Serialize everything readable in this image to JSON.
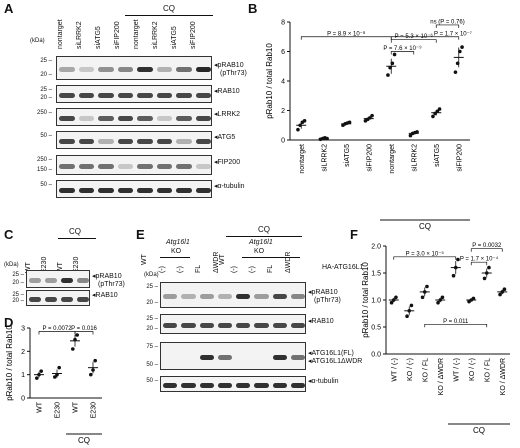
{
  "panels": {
    "A": {
      "label": "A",
      "cq": "CQ",
      "kda": "(kDa)",
      "lanes": [
        "nontarget",
        "siLRRK2",
        "siATG5",
        "siFIP200",
        "nontarget",
        "siLRRK2",
        "siATG5",
        "siFIP200"
      ],
      "blots": [
        {
          "name": "pRAB10 (pThr73)",
          "label": "pRAB10",
          "label2": "(pThr73)",
          "mw": [
            "25",
            "20"
          ]
        },
        {
          "name": "RAB10",
          "label": "RAB10",
          "label2": "",
          "mw": [
            "25",
            "20"
          ]
        },
        {
          "name": "LRRK2",
          "label": "LRRK2",
          "label2": "",
          "mw": [
            "250"
          ]
        },
        {
          "name": "ATG5",
          "label": "ATG5",
          "label2": "",
          "mw": [
            "50"
          ]
        },
        {
          "name": "FIP200",
          "label": "FIP200",
          "label2": "",
          "mw": [
            "250",
            "150"
          ]
        },
        {
          "name": "alpha-tubulin",
          "label": "α-tubulin",
          "label2": "",
          "mw": [
            "50"
          ]
        }
      ]
    },
    "B": {
      "label": "B",
      "cq": "CQ",
      "chart_data": {
        "type": "scatter",
        "ylabel": "pRab10 / total Rab10",
        "ylim": [
          0,
          8
        ],
        "yticks": [
          0,
          2,
          4,
          6,
          8
        ],
        "categories": [
          "nontarget",
          "siLRRK2",
          "siATG5",
          "siFIP200",
          "nontarget",
          "siLRRK2",
          "siATG5",
          "siFIP200"
        ],
        "means": [
          1.0,
          0.1,
          1.1,
          1.45,
          5.0,
          0.45,
          1.85,
          5.6
        ],
        "points": [
          [
            0.7,
            1.0,
            1.2,
            1.3
          ],
          [
            0.05,
            0.1,
            0.15,
            0.1
          ],
          [
            1.0,
            1.1,
            1.15,
            1.2
          ],
          [
            1.3,
            1.4,
            1.5,
            1.65
          ],
          [
            4.4,
            4.9,
            5.2,
            5.8
          ],
          [
            0.3,
            0.45,
            0.5,
            0.55
          ],
          [
            1.6,
            1.8,
            1.95,
            2.1
          ],
          [
            4.6,
            5.2,
            6.0,
            6.3
          ]
        ],
        "annotations": [
          "P = 8.9 × 10⁻⁸",
          "P = 7.6 × 10⁻⁹",
          "P = 5.3 × 10⁻⁶",
          "P = 1.7 × 10⁻⁷",
          "ns (P = 0.76)"
        ]
      }
    },
    "C": {
      "label": "C",
      "cq": "CQ",
      "kda": "(kDa)",
      "lanes": [
        "WT",
        "E230",
        "WT",
        "E230"
      ],
      "blots": [
        {
          "name": "pRAB10 (pThr73)",
          "label": "pRAB10",
          "label2": "(pThr73)",
          "mw": [
            "25",
            "20"
          ]
        },
        {
          "name": "RAB10",
          "label": "RAB10",
          "label2": "",
          "mw": [
            "25",
            "20"
          ]
        }
      ]
    },
    "D": {
      "label": "D",
      "cq": "CQ",
      "chart_data": {
        "type": "scatter",
        "ylabel": "pRab10 / total Rab10",
        "ylim": [
          0,
          3
        ],
        "yticks": [
          0,
          1,
          2,
          3
        ],
        "categories": [
          "WT",
          "E230",
          "WT",
          "E230"
        ],
        "means": [
          1.0,
          1.05,
          2.45,
          1.3
        ],
        "points": [
          [
            0.85,
            1.0,
            1.15
          ],
          [
            0.9,
            1.0,
            1.3
          ],
          [
            2.1,
            2.5,
            2.7
          ],
          [
            1.0,
            1.2,
            1.6
          ]
        ],
        "annotations": [
          "P = 0.0072",
          "P = 0.016"
        ]
      }
    },
    "E": {
      "label": "E",
      "cq": "CQ",
      "kda": "(kDa)",
      "wt": "WT",
      "ko_gene": "Atg16l1",
      "ko": "KO",
      "lanes": [
        "(-)",
        "(-)",
        "FL",
        "ΔWDR",
        "(-)",
        "(-)",
        "FL",
        "ΔWDR"
      ],
      "lane_header": "HA-ATG16L1",
      "blots": [
        {
          "name": "pRAB10 (pThr73)",
          "label": "pRAB10",
          "label2": "(pThr73)",
          "mw": [
            "25",
            "20"
          ]
        },
        {
          "name": "RAB10",
          "label": "RAB10",
          "label2": "",
          "mw": [
            "25",
            "20"
          ]
        },
        {
          "name": "ATG16L1",
          "label": "ATG16L1(FL)",
          "label2": "ATG16L1ΔWDR",
          "mw": [
            "75",
            "50"
          ]
        },
        {
          "name": "alpha-tubulin",
          "label": "α-tubulin",
          "label2": "",
          "mw": [
            "50"
          ]
        }
      ]
    },
    "F": {
      "label": "F",
      "cq": "CQ",
      "chart_data": {
        "type": "scatter",
        "ylabel": "pRab10 / total Rab10",
        "ylim": [
          0,
          2.0
        ],
        "yticks": [
          0,
          0.5,
          1.0,
          1.5,
          2.0
        ],
        "categories": [
          "WT / (-)",
          "KO / (-)",
          "KO / FL",
          "KO / ΔWDR",
          "WT / (-)",
          "KO / (-)",
          "KO / FL",
          "KO / ΔWDR"
        ],
        "means": [
          1.0,
          0.8,
          1.15,
          1.0,
          1.6,
          1.0,
          1.5,
          1.15
        ],
        "points": [
          [
            0.95,
            1.0,
            1.05
          ],
          [
            0.7,
            0.8,
            0.9
          ],
          [
            1.05,
            1.15,
            1.25
          ],
          [
            0.95,
            1.0,
            1.05
          ],
          [
            1.45,
            1.6,
            1.75
          ],
          [
            0.97,
            1.0,
            1.03
          ],
          [
            1.4,
            1.5,
            1.6
          ],
          [
            1.1,
            1.15,
            1.2
          ]
        ],
        "annotations": [
          "P = 3.0 × 10⁻⁵",
          "P = 1.7 × 10⁻⁴",
          "P = 0.0032",
          "P = 0.011"
        ]
      }
    }
  }
}
